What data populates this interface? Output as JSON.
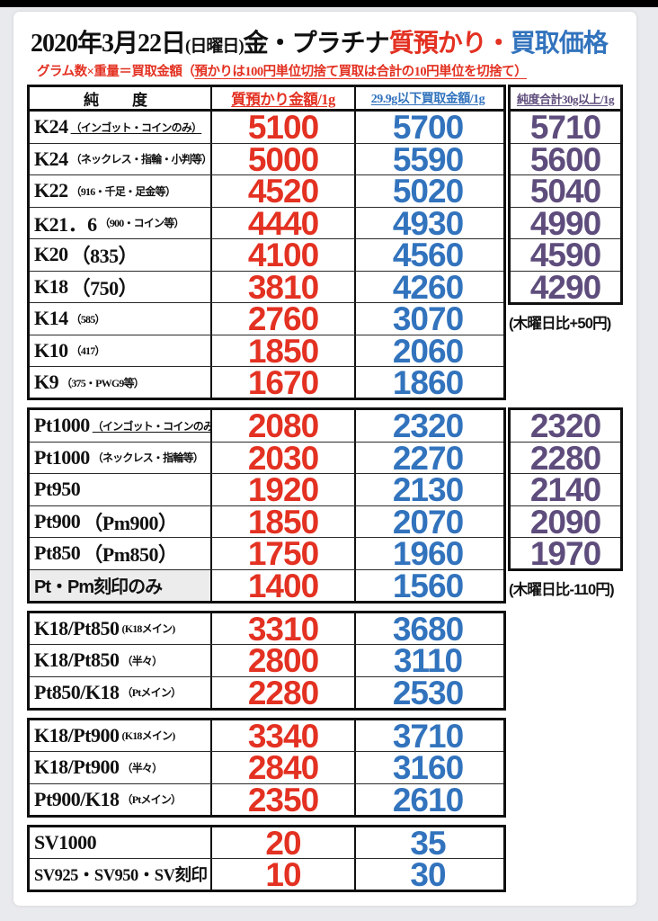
{
  "colors": {
    "pawn_red": "#e33122",
    "buy_blue": "#3273bd",
    "total_purple": "#5e4d7c"
  },
  "title": {
    "date": "2020年3月22日",
    "weekday": "(日曜日)",
    "metals": "金・プラチナ",
    "pawn_word": "質預かり",
    "dot": "・",
    "buy_word": "買取価格"
  },
  "subtitle": {
    "plain": "グラム数×重量＝買取金額（",
    "underlined": "預かりは100円単位切捨て買取は合計の10円単位を切捨て）"
  },
  "header": {
    "purity": "純　度",
    "pawn_price": "質預かり金額/1g",
    "buy_under_30g": "29.9g以下買取金額/1g",
    "total_over_30g": "純度合計30g以上/1g"
  },
  "sections": [
    {
      "id": "gold",
      "side_rows": 6,
      "note": "(木曜日比+50円)",
      "rows": [
        {
          "main": "K24",
          "sub": "（インゴット・コインのみ）",
          "sub_underline": true,
          "pawn": "5100",
          "buy": "5700",
          "total": "5710"
        },
        {
          "main": "K24",
          "sub": "（ネックレス・指輪・小判等）",
          "pawn": "5000",
          "buy": "5590",
          "total": "5600"
        },
        {
          "main": "K22",
          "sub": "（916・千足・足金等）",
          "pawn": "4520",
          "buy": "5020",
          "total": "5040"
        },
        {
          "main": "K21．6",
          "sub": "（900・コイン等）",
          "pawn": "4440",
          "buy": "4930",
          "total": "4990"
        },
        {
          "main": "K20",
          "sub": "（835）",
          "sub_large": true,
          "pawn": "4100",
          "buy": "4560",
          "total": "4590"
        },
        {
          "main": "K18",
          "sub": "（750）",
          "sub_large": true,
          "pawn": "3810",
          "buy": "4260",
          "total": "4290"
        },
        {
          "main": "K14",
          "sub": "（585）",
          "pawn": "2760",
          "buy": "3070"
        },
        {
          "main": "K10",
          "sub": "（417）",
          "pawn": "1850",
          "buy": "2060"
        },
        {
          "main": "K9",
          "sub": "（375・PWG9等）",
          "pawn": "1670",
          "buy": "1860"
        }
      ]
    },
    {
      "id": "platinum",
      "side_rows": 5,
      "note": "(木曜日比-110円)",
      "rows": [
        {
          "main": "Pt1000",
          "sub": "（インゴット・コインのみ）",
          "sub_underline": true,
          "pawn": "2080",
          "buy": "2320",
          "total": "2320"
        },
        {
          "main": "Pt1000",
          "sub": "（ネックレス・指輪等）",
          "pawn": "2030",
          "buy": "2270",
          "total": "2280"
        },
        {
          "main": "Pt950",
          "pawn": "1920",
          "buy": "2130",
          "total": "2140"
        },
        {
          "main": "Pt900",
          "sub": "（Pm900）",
          "sub_large": true,
          "pawn": "1850",
          "buy": "2070",
          "total": "2090"
        },
        {
          "main": "Pt850",
          "sub": "（Pm850）",
          "sub_large": true,
          "pawn": "1750",
          "buy": "1960",
          "total": "1970"
        },
        {
          "main": "Pt・Pm刻印のみ",
          "sans": true,
          "gray": true,
          "pawn": "1400",
          "buy": "1560"
        }
      ]
    },
    {
      "id": "mix-850",
      "rows": [
        {
          "main": "K18/Pt850",
          "sub": "(K18メイン)",
          "pawn": "3310",
          "buy": "3680"
        },
        {
          "main": "K18/Pt850",
          "sub": "（半々）",
          "pawn": "2800",
          "buy": "3110"
        },
        {
          "main": "Pt850/K18",
          "sub": "（Ptメイン）",
          "pawn": "2280",
          "buy": "2530"
        }
      ]
    },
    {
      "id": "mix-900",
      "rows": [
        {
          "main": "K18/Pt900",
          "sub": "(K18メイン)",
          "pawn": "3340",
          "buy": "3710"
        },
        {
          "main": "K18/Pt900",
          "sub": "（半々）",
          "pawn": "2840",
          "buy": "3160"
        },
        {
          "main": "Pt900/K18",
          "sub": "（Ptメイン）",
          "pawn": "2350",
          "buy": "2610"
        }
      ]
    },
    {
      "id": "silver",
      "rows": [
        {
          "main": "SV1000",
          "pawn": "20",
          "buy": "35"
        },
        {
          "main": "SV925・SV950・SV刻印",
          "small_main": true,
          "pawn": "10",
          "buy": "30"
        }
      ]
    }
  ]
}
